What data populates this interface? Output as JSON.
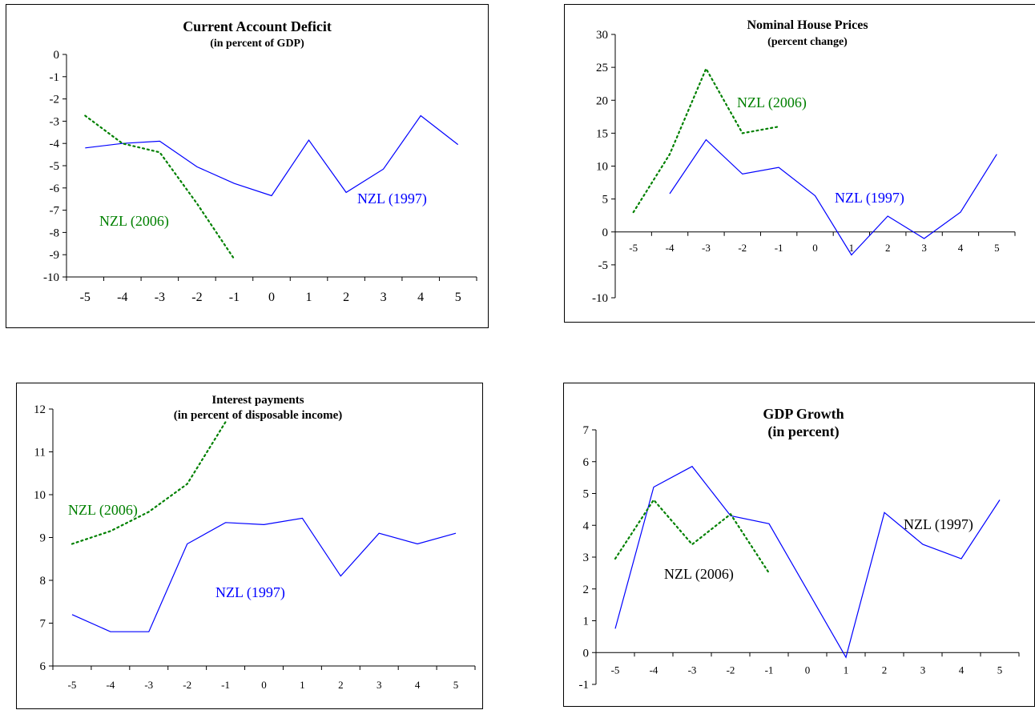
{
  "chart_data": [
    {
      "type": "line",
      "title": "Current Account Deficit",
      "subtitle": "(in percent of GDP)",
      "x": [
        -5,
        -4,
        -3,
        -2,
        -1,
        0,
        1,
        2,
        3,
        4,
        5
      ],
      "ylim": [
        -10,
        0
      ],
      "yticks": [
        0,
        -1,
        -2,
        -3,
        -4,
        -5,
        -6,
        -7,
        -8,
        -9,
        -10
      ],
      "grid": false,
      "series": [
        {
          "name": "NZL (1997)",
          "color": "#0000ff",
          "style": "solid",
          "values": [
            -4.2,
            -4.0,
            -3.9,
            -5.05,
            -5.8,
            -6.35,
            -3.85,
            -6.2,
            -5.15,
            -2.75,
            -4.05
          ]
        },
        {
          "name": "NZL (2006)",
          "color": "#008000",
          "style": "dotted",
          "values": [
            -2.75,
            -4.0,
            -4.4,
            -6.7,
            -9.2,
            null,
            null,
            null,
            null,
            null,
            null
          ]
        }
      ]
    },
    {
      "type": "line",
      "title": "Nominal House Prices",
      "subtitle": "(percent change)",
      "x": [
        -5,
        -4,
        -3,
        -2,
        -1,
        0,
        1,
        2,
        3,
        4,
        5
      ],
      "ylim": [
        -10,
        30
      ],
      "yticks": [
        30,
        25,
        20,
        15,
        10,
        5,
        0,
        -5,
        -10
      ],
      "grid": false,
      "series": [
        {
          "name": "NZL (1997)",
          "color": "#0000ff",
          "style": "solid",
          "values": [
            null,
            5.8,
            14.0,
            8.8,
            9.8,
            5.5,
            -3.5,
            2.4,
            -1.0,
            3.0,
            11.8
          ]
        },
        {
          "name": "NZL (2006)",
          "color": "#008000",
          "style": "dotted",
          "values": [
            3.0,
            11.8,
            24.8,
            15.0,
            16.0,
            null,
            null,
            null,
            null,
            null,
            null
          ]
        }
      ]
    },
    {
      "type": "line",
      "title": "Interest payments",
      "subtitle": "(in percent of disposable income)",
      "x": [
        -5,
        -4,
        -3,
        -2,
        -1,
        0,
        1,
        2,
        3,
        4,
        5
      ],
      "ylim": [
        6,
        12
      ],
      "yticks": [
        12,
        11,
        10,
        9,
        8,
        7,
        6
      ],
      "grid": false,
      "series": [
        {
          "name": "NZL (1997)",
          "color": "#0000ff",
          "style": "solid",
          "values": [
            7.2,
            6.8,
            6.8,
            8.85,
            9.35,
            9.3,
            9.45,
            8.1,
            9.1,
            8.85,
            9.1
          ]
        },
        {
          "name": "NZL (2006)",
          "color": "#008000",
          "style": "dotted",
          "values": [
            8.85,
            9.15,
            9.6,
            10.25,
            11.7,
            null,
            null,
            null,
            null,
            null,
            null
          ]
        }
      ]
    },
    {
      "type": "line",
      "title": "GDP Growth",
      "subtitle": "(in percent)",
      "x": [
        -5,
        -4,
        -3,
        -2,
        -1,
        0,
        1,
        2,
        3,
        4,
        5
      ],
      "ylim": [
        -1,
        7
      ],
      "yticks": [
        7,
        6,
        5,
        4,
        3,
        2,
        1,
        0,
        -1
      ],
      "grid": false,
      "series": [
        {
          "name": "NZL (1997)",
          "color": "#0000ff",
          "style": "solid",
          "values": [
            0.75,
            5.2,
            5.85,
            4.3,
            4.05,
            1.95,
            -0.15,
            4.4,
            3.4,
            2.95,
            4.8
          ]
        },
        {
          "name": "NZL (2006)",
          "color": "#008000",
          "style": "dotted",
          "values": [
            2.95,
            4.8,
            3.4,
            4.35,
            2.5,
            null,
            null,
            null,
            null,
            null,
            null
          ]
        }
      ]
    }
  ],
  "labels": {
    "nzl1997": "NZL (1997)",
    "nzl2006": "NZL (2006)"
  }
}
